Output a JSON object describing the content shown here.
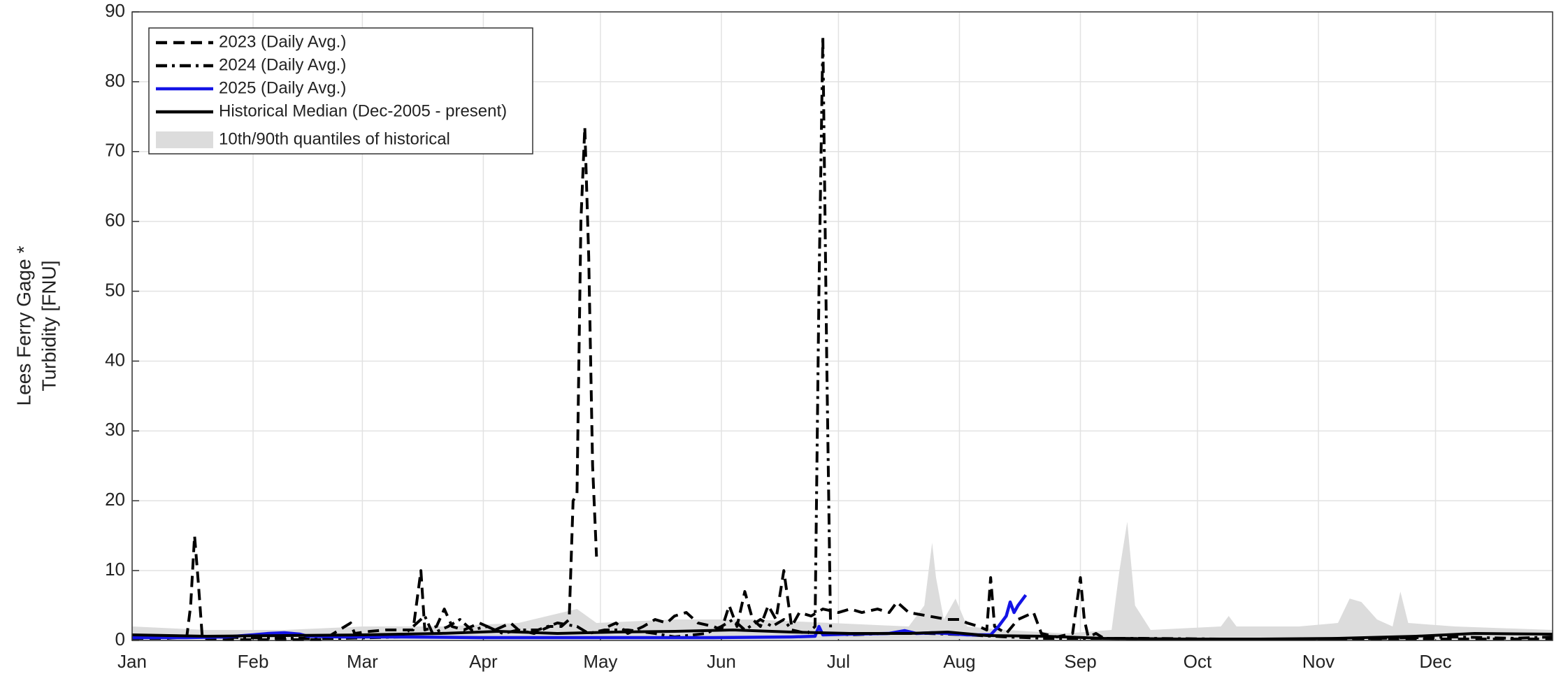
{
  "chart_data": {
    "type": "line",
    "ylabel": [
      "Lees Ferry Gage *",
      "Turbidity [FNU]"
    ],
    "xlim": [
      1,
      365
    ],
    "ylim": [
      0,
      90
    ],
    "xticks": [
      {
        "value": 1,
        "label": "Jan"
      },
      {
        "value": 32,
        "label": "Feb"
      },
      {
        "value": 60,
        "label": "Mar"
      },
      {
        "value": 91,
        "label": "Apr"
      },
      {
        "value": 121,
        "label": "May"
      },
      {
        "value": 152,
        "label": "Jun"
      },
      {
        "value": 182,
        "label": "Jul"
      },
      {
        "value": 213,
        "label": "Aug"
      },
      {
        "value": 244,
        "label": "Sep"
      },
      {
        "value": 274,
        "label": "Oct"
      },
      {
        "value": 305,
        "label": "Nov"
      },
      {
        "value": 335,
        "label": "Dec"
      }
    ],
    "yticks": [
      0,
      10,
      20,
      30,
      40,
      50,
      60,
      70,
      80,
      90
    ],
    "grid": true,
    "legend": "upper left",
    "series": [
      {
        "name": "2023 (Daily Avg.)",
        "color": "#000000",
        "dash": "dashed",
        "x": [
          1,
          10,
          15,
          16,
          17,
          18,
          19,
          25,
          35,
          45,
          50,
          57,
          58,
          62,
          66,
          70,
          73,
          75,
          76,
          79,
          81,
          83,
          86,
          90,
          94,
          98,
          100,
          104,
          108,
          111,
          113,
          114,
          115,
          116,
          117,
          118,
          119,
          120,
          121,
          123,
          125,
          128,
          132,
          135,
          138,
          140,
          143,
          146,
          150,
          152,
          154,
          156,
          158,
          160,
          162,
          164,
          166,
          168,
          170,
          172,
          175,
          178,
          182,
          185,
          188,
          192,
          195,
          197,
          200,
          205,
          210,
          213,
          215,
          218,
          220,
          221,
          222,
          225,
          228,
          232,
          234,
          238,
          242,
          244,
          245,
          246,
          248,
          250,
          270,
          300,
          330,
          365
        ],
        "values": [
          0.3,
          0.3,
          0.5,
          5,
          15,
          8,
          0.3,
          0.1,
          0.1,
          0.1,
          0.1,
          2.5,
          1,
          1.3,
          1.5,
          1.5,
          1.5,
          10,
          1.5,
          2,
          4.5,
          2,
          1.5,
          2.5,
          1.5,
          2.5,
          1.5,
          1,
          2,
          2,
          3,
          20,
          21,
          60,
          73.5,
          55,
          25,
          12,
          null,
          2,
          2.5,
          1,
          2,
          3,
          2.5,
          3.5,
          4,
          2.5,
          2,
          1.5,
          5,
          2,
          7,
          3,
          2,
          5,
          3,
          10,
          2,
          4,
          3.5,
          4.5,
          4,
          4.5,
          4,
          4.5,
          4,
          5.5,
          4,
          3.5,
          3,
          3,
          2.5,
          2,
          1.5,
          9,
          2,
          1,
          3,
          4,
          1,
          0.5,
          1,
          9,
          3,
          0.5,
          1,
          0.3,
          0.2,
          0.2,
          0.2,
          0.2
        ]
      },
      {
        "name": "2024 (Daily Avg.)",
        "color": "#000000",
        "dash": "dashdot",
        "x": [
          1,
          20,
          40,
          55,
          70,
          76,
          78,
          82,
          85,
          88,
          92,
          96,
          100,
          105,
          110,
          115,
          118,
          122,
          128,
          135,
          140,
          148,
          152,
          155,
          158,
          162,
          165,
          168,
          170,
          174,
          176,
          177,
          178,
          179,
          180,
          185,
          195,
          205,
          215,
          225,
          235,
          245,
          260,
          280,
          300,
          320,
          340,
          355,
          365
        ],
        "values": [
          0.5,
          0.5,
          0.3,
          0.3,
          0.5,
          3.5,
          1,
          2,
          3,
          1.5,
          2,
          1,
          1.5,
          1.5,
          2.5,
          2,
          1,
          1.5,
          1.5,
          1,
          0.5,
          1,
          2,
          3,
          1.5,
          3,
          2,
          3,
          1.5,
          1,
          2,
          50,
          86.5,
          40,
          1,
          0.8,
          1,
          1,
          0.8,
          0.5,
          0.3,
          0.3,
          0.3,
          0.2,
          0.2,
          0.3,
          0.5,
          0.3,
          0.5
        ]
      },
      {
        "name": "2025 (Daily Avg.)",
        "color": "#1414e6",
        "dash": "solid",
        "x": [
          1,
          15,
          25,
          32,
          36,
          40,
          44,
          46,
          55,
          70,
          90,
          110,
          130,
          150,
          170,
          176,
          177,
          178,
          185,
          195,
          199,
          202,
          206,
          210,
          215,
          221,
          223,
          225,
          226,
          227,
          228,
          230
        ],
        "values": [
          0.4,
          0.4,
          0.5,
          0.8,
          1,
          1.1,
          0.9,
          0.6,
          0.5,
          0.5,
          0.4,
          0.4,
          0.4,
          0.4,
          0.5,
          0.6,
          2,
          0.8,
          0.9,
          1,
          1.4,
          1,
          1.1,
          1,
          0.8,
          0.8,
          2,
          3.5,
          5.5,
          4,
          5,
          6.5
        ]
      },
      {
        "name": "Historical Median (Dec-2005 - present)",
        "color": "#000000",
        "dash": "solid",
        "x": [
          1,
          20,
          40,
          60,
          80,
          95,
          110,
          125,
          140,
          155,
          170,
          185,
          200,
          210,
          220,
          235,
          250,
          270,
          290,
          310,
          330,
          345,
          365
        ],
        "values": [
          0.8,
          0.6,
          0.7,
          0.8,
          1,
          1.3,
          1,
          1.2,
          1.3,
          1.5,
          1.2,
          1,
          1,
          1.2,
          0.7,
          0.6,
          0.3,
          0.2,
          0.2,
          0.3,
          0.6,
          1,
          0.9
        ]
      },
      {
        "name": "10th/90th quantiles of historical",
        "color": "#dcdcdc",
        "kind": "band",
        "x": [
          1,
          20,
          40,
          60,
          80,
          100,
          115,
          120,
          140,
          160,
          180,
          200,
          204,
          206,
          207,
          209,
          212,
          215,
          225,
          240,
          252,
          254,
          256,
          258,
          262,
          280,
          282,
          284,
          300,
          310,
          313,
          316,
          320,
          324,
          326,
          328,
          340,
          365
        ],
        "upper": [
          2,
          1.5,
          1.5,
          2,
          2,
          2.5,
          4.5,
          2.5,
          3,
          3,
          2.5,
          2,
          5,
          14,
          9,
          3,
          6,
          2,
          1.5,
          1,
          1.5,
          10,
          17,
          5,
          1.5,
          2,
          3.5,
          2,
          2,
          2.5,
          6,
          5.5,
          3,
          2,
          7,
          2.5,
          2,
          1.5
        ],
        "lower": [
          0.2,
          0.2,
          0.2,
          0.2,
          0.2,
          0.2,
          0.2,
          0.2,
          0.2,
          0.2,
          0.2,
          0.2,
          0.2,
          0.2,
          0.2,
          0.2,
          0.2,
          0.2,
          0.2,
          0.2,
          0.2,
          0.2,
          0.2,
          0.2,
          0.2,
          0.2,
          0.2,
          0.2,
          0.2,
          0.2,
          0.2,
          0.2,
          0.2,
          0.2,
          0.2,
          0.2,
          0.2,
          0.2
        ]
      }
    ]
  }
}
